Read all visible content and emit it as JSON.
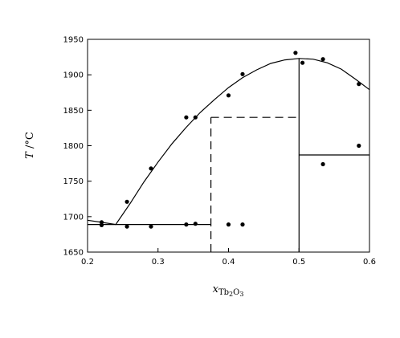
{
  "chart_data": {
    "type": "scatter",
    "xlabel": {
      "var": "x",
      "sub1": "Tb",
      "sub2": "2",
      "sub3": "O",
      "sub4": "3"
    },
    "ylabel": {
      "var": "T",
      "unit": " /°C"
    },
    "xlim": [
      0.2,
      0.6
    ],
    "ylim": [
      1650,
      1950
    ],
    "xticks": [
      "0.2",
      "0.3",
      "0.4",
      "0.5",
      "0.6"
    ],
    "yticks": [
      "1650",
      "1700",
      "1750",
      "1800",
      "1850",
      "1900",
      "1950"
    ],
    "grid": false,
    "points": [
      [
        0.22,
        1692
      ],
      [
        0.22,
        1688
      ],
      [
        0.256,
        1686
      ],
      [
        0.29,
        1686
      ],
      [
        0.34,
        1689
      ],
      [
        0.353,
        1690
      ],
      [
        0.4,
        1689
      ],
      [
        0.42,
        1689
      ],
      [
        0.256,
        1721
      ],
      [
        0.29,
        1768
      ],
      [
        0.34,
        1840
      ],
      [
        0.353,
        1840
      ],
      [
        0.4,
        1871
      ],
      [
        0.42,
        1901
      ],
      [
        0.495,
        1931
      ],
      [
        0.505,
        1917
      ],
      [
        0.534,
        1922
      ],
      [
        0.585,
        1887
      ],
      [
        0.585,
        1800
      ],
      [
        0.534,
        1774
      ]
    ],
    "lines": [
      {
        "style": "solid",
        "points": [
          [
            0.2,
            1695
          ],
          [
            0.24,
            1689
          ],
          [
            0.26,
            1718
          ],
          [
            0.28,
            1749
          ],
          [
            0.3,
            1777
          ],
          [
            0.32,
            1803
          ],
          [
            0.34,
            1826
          ],
          [
            0.36,
            1847
          ],
          [
            0.38,
            1865
          ],
          [
            0.4,
            1882
          ],
          [
            0.42,
            1896
          ],
          [
            0.44,
            1907
          ],
          [
            0.46,
            1916
          ],
          [
            0.48,
            1921
          ],
          [
            0.5,
            1923
          ],
          [
            0.52,
            1922
          ],
          [
            0.54,
            1917
          ],
          [
            0.56,
            1908
          ],
          [
            0.58,
            1894
          ],
          [
            0.6,
            1879
          ]
        ]
      },
      {
        "style": "solid",
        "points": [
          [
            0.2,
            1689
          ],
          [
            0.375,
            1689
          ]
        ]
      },
      {
        "style": "solid",
        "points": [
          [
            0.5,
            1650
          ],
          [
            0.5,
            1923
          ]
        ]
      },
      {
        "style": "solid",
        "points": [
          [
            0.5,
            1787
          ],
          [
            0.6,
            1787
          ]
        ]
      },
      {
        "style": "dashed",
        "points": [
          [
            0.375,
            1650
          ],
          [
            0.375,
            1840
          ]
        ]
      },
      {
        "style": "dashed",
        "points": [
          [
            0.375,
            1840
          ],
          [
            0.5,
            1840
          ]
        ]
      }
    ]
  }
}
